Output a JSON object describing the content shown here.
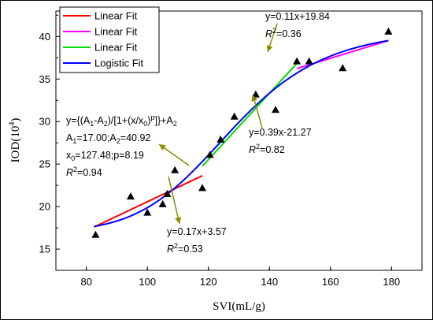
{
  "chart_data": {
    "type": "scatter",
    "xlabel": "SVI(mL/g)",
    "ylabel": "IOD(10",
    "ylabel_sup": "4",
    "ylabel_close": ")",
    "xlim": [
      70,
      190
    ],
    "ylim": [
      12.5,
      43
    ],
    "xticks": [
      80,
      100,
      120,
      140,
      160,
      180
    ],
    "yticks": [
      15,
      20,
      25,
      30,
      35,
      40
    ],
    "grid": false,
    "legend_position": "top-left",
    "points": [
      {
        "x": 83,
        "y": 16.7
      },
      {
        "x": 94.5,
        "y": 21.2
      },
      {
        "x": 100,
        "y": 19.3
      },
      {
        "x": 105,
        "y": 20.3
      },
      {
        "x": 106.5,
        "y": 21.5
      },
      {
        "x": 109,
        "y": 24.3
      },
      {
        "x": 118,
        "y": 22.2
      },
      {
        "x": 120.5,
        "y": 26.1
      },
      {
        "x": 124,
        "y": 27.9
      },
      {
        "x": 128.5,
        "y": 30.6
      },
      {
        "x": 135.5,
        "y": 33.2
      },
      {
        "x": 142,
        "y": 31.4
      },
      {
        "x": 149,
        "y": 37.1
      },
      {
        "x": 153,
        "y": 37.1
      },
      {
        "x": 164,
        "y": 36.3
      },
      {
        "x": 179,
        "y": 40.6
      }
    ],
    "series": [
      {
        "name": "Linear Fit",
        "kind": "linear",
        "slope": 0.17,
        "intercept": 3.57,
        "x_range": [
          82.5,
          118
        ],
        "color": "#ff0000"
      },
      {
        "name": "Linear Fit",
        "kind": "linear",
        "slope": 0.11,
        "intercept": 19.84,
        "x_range": [
          149,
          179
        ],
        "color": "#ff00ff"
      },
      {
        "name": "Linear Fit",
        "kind": "linear",
        "slope": 0.39,
        "intercept": -21.27,
        "x_range": [
          118,
          149
        ],
        "color": "#00dd00"
      },
      {
        "name": "Logistic Fit",
        "kind": "logistic",
        "A1": 17.0,
        "A2": 40.92,
        "x0": 127.48,
        "p": 8.19,
        "x_range": [
          82.5,
          179
        ],
        "color": "#0000ff"
      }
    ],
    "annotations": {
      "top": {
        "equation": "y=0.11x+19.84",
        "r2_prefix": "R",
        "r2_sup": "2",
        "r2_value": "=0.36"
      },
      "middle": {
        "equation": "y=0.39x-21.27",
        "r2_prefix": "R",
        "r2_sup": "2",
        "r2_value": "=0.82"
      },
      "bottom": {
        "equation": "y=0.17x+3.57",
        "r2_prefix": "R",
        "r2_sup": "2",
        "r2_value": "=0.53"
      },
      "logistic": {
        "line1_a": "y={(A",
        "line1_a_sub": "1",
        "line1_b": "-A",
        "line1_b_sub": "2",
        "line1_c": ")/[1+(x/x",
        "line1_c_sub": "0",
        "line1_d": ")",
        "line1_d_sup": "p",
        "line1_e": "]}+A",
        "line1_e_sub": "2",
        "line2_a": "A",
        "line2_a_sub": "1",
        "line2_b": "=17.00;A",
        "line2_b_sub": "2",
        "line2_c": "=40.92",
        "line3_a": "x",
        "line3_a_sub": "0",
        "line3_b": "=127.48;p=8.19",
        "r2_prefix": "R",
        "r2_sup": "2",
        "r2_value": "=0.94"
      },
      "arrow_color": "#8b8b00"
    }
  }
}
